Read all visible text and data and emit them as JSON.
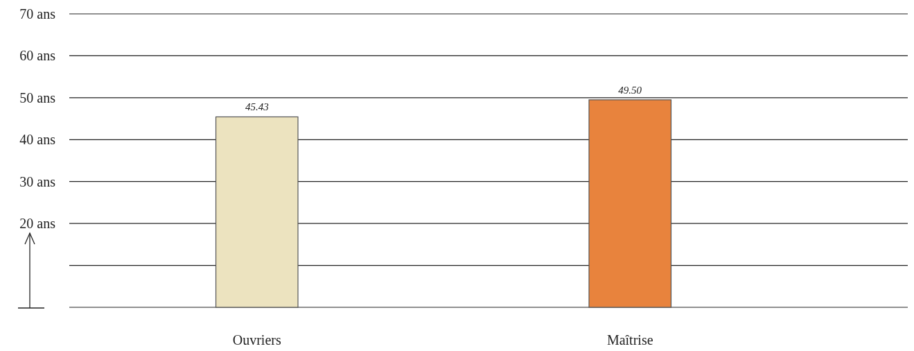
{
  "chart_data": {
    "type": "bar",
    "categories": [
      "Ouvriers",
      "Maîtrise"
    ],
    "values": [
      45.43,
      49.5
    ],
    "colors": [
      "#ece3bf",
      "#e8833d"
    ],
    "ylim": [
      0,
      70
    ],
    "yticks": [
      {
        "value": 0,
        "label": null
      },
      {
        "value": 10,
        "label": null
      },
      {
        "value": 20,
        "label": "20 ans"
      },
      {
        "value": 30,
        "label": "30 ans"
      },
      {
        "value": 40,
        "label": "40 ans"
      },
      {
        "value": 50,
        "label": "50 ans"
      },
      {
        "value": 60,
        "label": "60 ans"
      },
      {
        "value": 70,
        "label": "70 ans"
      }
    ],
    "grid": "y",
    "data_labels": true,
    "value_labels": [
      "45.43",
      "49.50"
    ]
  }
}
